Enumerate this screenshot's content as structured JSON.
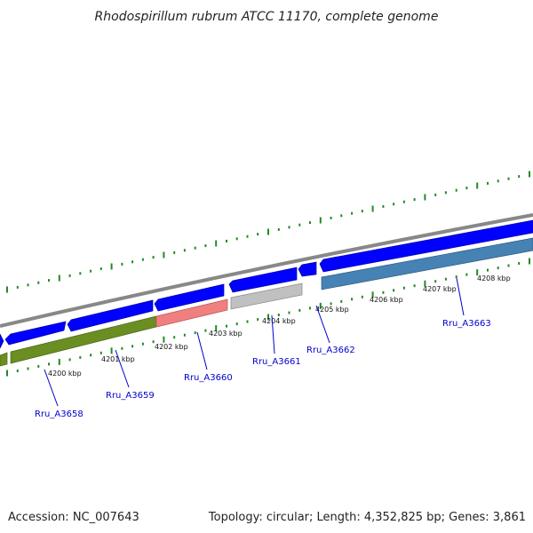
{
  "title": "Rhodospirillum rubrum ATCC 11170, complete genome",
  "footer": {
    "accession": "Accession: NC_007643",
    "topology": "Topology: circular; Length: 4,352,825 bp; Genes: 3,861"
  },
  "kbp_labels": [
    "4200 kbp",
    "4201 kbp",
    "4202 kbp",
    "4203 kbp",
    "4204 kbp",
    "4205 kbp",
    "4206 kbp",
    "4207 kbp",
    "4208 kbp"
  ],
  "genes": [
    {
      "label": "Rru_A3658",
      "color": "#6b8e23"
    },
    {
      "label": "Rru_A3659",
      "color": "#6b8e23"
    },
    {
      "label": "Rru_A3660",
      "color": "#f08080"
    },
    {
      "label": "Rru_A3661",
      "color": "#c0c0c0"
    },
    {
      "label": "Rru_A3662",
      "color": "#0000ff"
    },
    {
      "label": "Rru_A3663",
      "color": "#4682b4"
    }
  ],
  "colors": {
    "cds_forward": "#0000ff",
    "backbone": "#808080",
    "ticks": "#228b22",
    "gene_label": "#0000cc"
  }
}
